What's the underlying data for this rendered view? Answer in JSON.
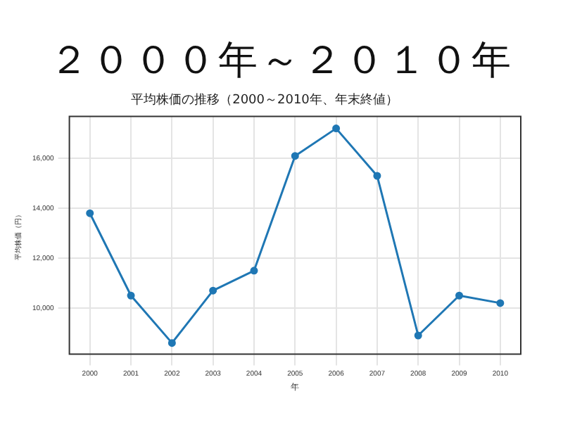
{
  "chart_data": {
    "type": "line",
    "title": "２０００年～２０１０年",
    "subtitle": "平均株価の推移（2000～2010年、年末終値）",
    "xlabel": "年",
    "ylabel": "平均株価（円）",
    "categories": [
      "2000",
      "2001",
      "2002",
      "2003",
      "2004",
      "2005",
      "2006",
      "2007",
      "2008",
      "2009",
      "2010"
    ],
    "series": [
      {
        "color": "#1f77b4",
        "values": [
          13800,
          10500,
          8600,
          10700,
          11500,
          16100,
          17200,
          15300,
          8900,
          10500,
          10200
        ]
      }
    ],
    "ylim": [
      8150,
      17680
    ],
    "yticks": [
      {
        "value": 10000,
        "label": "10,000"
      },
      {
        "value": 12000,
        "label": "12,000"
      },
      {
        "value": 14000,
        "label": "14,000"
      },
      {
        "value": 16000,
        "label": "16,000"
      }
    ],
    "grid": true,
    "marker": "circle",
    "line_style": "solid",
    "legend": false
  }
}
